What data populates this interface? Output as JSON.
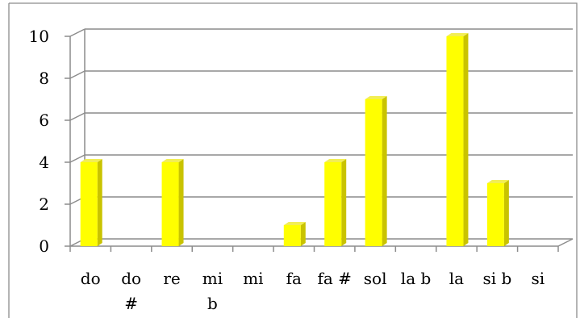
{
  "chart_data": {
    "type": "bar",
    "title": "",
    "xlabel": "",
    "ylabel": "",
    "categories": [
      {
        "lines": [
          "do"
        ]
      },
      {
        "lines": [
          "do",
          "#"
        ]
      },
      {
        "lines": [
          "re"
        ]
      },
      {
        "lines": [
          "mi",
          "b"
        ]
      },
      {
        "lines": [
          "mi"
        ]
      },
      {
        "lines": [
          "fa"
        ]
      },
      {
        "lines": [
          "fa #"
        ]
      },
      {
        "lines": [
          "sol"
        ]
      },
      {
        "lines": [
          "la b"
        ]
      },
      {
        "lines": [
          "la"
        ]
      },
      {
        "lines": [
          "si b"
        ]
      },
      {
        "lines": [
          "si"
        ]
      }
    ],
    "values": [
      4,
      0,
      4,
      0,
      0,
      1,
      4,
      7,
      0,
      10,
      3,
      0
    ],
    "ylim": [
      0,
      10
    ],
    "yticks": [
      "0",
      "2",
      "4",
      "6",
      "8",
      "10"
    ],
    "grid": true,
    "legend": "none",
    "style": "3d-column",
    "colors": {
      "bar_front": "#ffff00",
      "bar_side": "#c9c300",
      "bar_top": "#f2ee55",
      "grid": "#8c8c8c",
      "frame": "#8c8c8c"
    }
  }
}
